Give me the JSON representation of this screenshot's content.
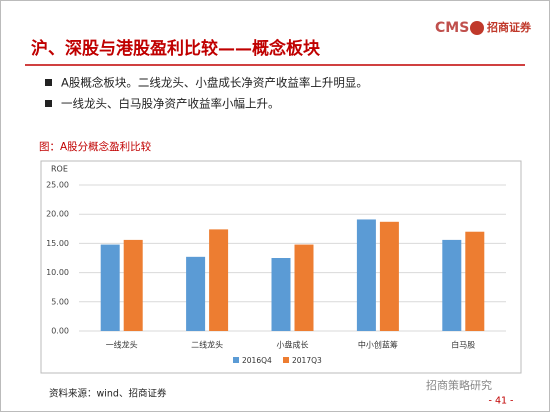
{
  "header": {
    "title": "沪、深股与港股盈利比较——概念板块",
    "logo_brand": "CMS",
    "logo_name": "招商证券"
  },
  "bullets": [
    "A股概念板块。二线龙头、小盘成长净资产收益率上升明显。",
    "一线龙头、白马股净资产收益率小幅上升。"
  ],
  "chart_data": {
    "type": "bar",
    "title": "图：A股分概念盈利比较",
    "y_label": "ROE",
    "categories": [
      "一线龙头",
      "二线龙头",
      "小盘成长",
      "中小创蓝筹",
      "白马股"
    ],
    "series": [
      {
        "name": "2016Q4",
        "color": "#5b9bd5",
        "values": [
          14.8,
          12.7,
          12.5,
          19.1,
          15.6
        ]
      },
      {
        "name": "2017Q3",
        "color": "#ed7d31",
        "values": [
          15.6,
          17.4,
          14.8,
          18.7,
          17.0
        ]
      }
    ],
    "ylim": [
      0,
      25
    ],
    "yticks": [
      {
        "value": 0,
        "label": "0.00"
      },
      {
        "value": 5,
        "label": "5.00"
      },
      {
        "value": 10,
        "label": "10.00"
      },
      {
        "value": 15,
        "label": "15.00"
      },
      {
        "value": 20,
        "label": "20.00"
      },
      {
        "value": 25,
        "label": "25.00"
      }
    ],
    "grid": true
  },
  "source": "资料来源：wind、招商证券",
  "watermark": "招商策略研究",
  "page_number": "- 41 -"
}
